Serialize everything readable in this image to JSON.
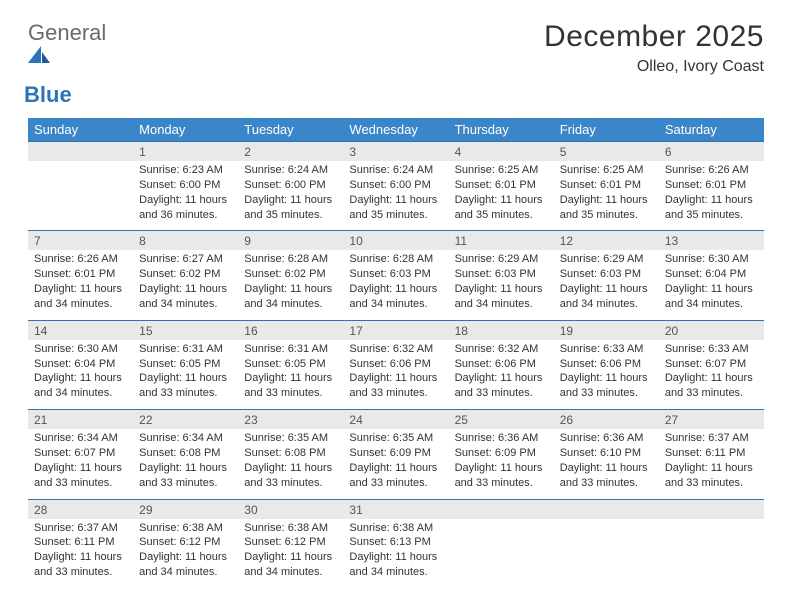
{
  "logo": {
    "text1": "General",
    "text2": "Blue"
  },
  "title": "December 2025",
  "location": "Olleo, Ivory Coast",
  "colors": {
    "header_bg": "#3a86c8",
    "header_text": "#ffffff",
    "daynum_bg": "#e9e9e9",
    "row_border": "#2b74b8",
    "text": "#333333",
    "logo_gray": "#6a6a6a",
    "logo_blue": "#2b74b8"
  },
  "weekdays": [
    "Sunday",
    "Monday",
    "Tuesday",
    "Wednesday",
    "Thursday",
    "Friday",
    "Saturday"
  ],
  "weeks": [
    {
      "nums": [
        "",
        "1",
        "2",
        "3",
        "4",
        "5",
        "6"
      ],
      "cells": [
        {
          "sunrise": "",
          "sunset": "",
          "daylight": ""
        },
        {
          "sunrise": "Sunrise: 6:23 AM",
          "sunset": "Sunset: 6:00 PM",
          "daylight": "Daylight: 11 hours and 36 minutes."
        },
        {
          "sunrise": "Sunrise: 6:24 AM",
          "sunset": "Sunset: 6:00 PM",
          "daylight": "Daylight: 11 hours and 35 minutes."
        },
        {
          "sunrise": "Sunrise: 6:24 AM",
          "sunset": "Sunset: 6:00 PM",
          "daylight": "Daylight: 11 hours and 35 minutes."
        },
        {
          "sunrise": "Sunrise: 6:25 AM",
          "sunset": "Sunset: 6:01 PM",
          "daylight": "Daylight: 11 hours and 35 minutes."
        },
        {
          "sunrise": "Sunrise: 6:25 AM",
          "sunset": "Sunset: 6:01 PM",
          "daylight": "Daylight: 11 hours and 35 minutes."
        },
        {
          "sunrise": "Sunrise: 6:26 AM",
          "sunset": "Sunset: 6:01 PM",
          "daylight": "Daylight: 11 hours and 35 minutes."
        }
      ]
    },
    {
      "nums": [
        "7",
        "8",
        "9",
        "10",
        "11",
        "12",
        "13"
      ],
      "cells": [
        {
          "sunrise": "Sunrise: 6:26 AM",
          "sunset": "Sunset: 6:01 PM",
          "daylight": "Daylight: 11 hours and 34 minutes."
        },
        {
          "sunrise": "Sunrise: 6:27 AM",
          "sunset": "Sunset: 6:02 PM",
          "daylight": "Daylight: 11 hours and 34 minutes."
        },
        {
          "sunrise": "Sunrise: 6:28 AM",
          "sunset": "Sunset: 6:02 PM",
          "daylight": "Daylight: 11 hours and 34 minutes."
        },
        {
          "sunrise": "Sunrise: 6:28 AM",
          "sunset": "Sunset: 6:03 PM",
          "daylight": "Daylight: 11 hours and 34 minutes."
        },
        {
          "sunrise": "Sunrise: 6:29 AM",
          "sunset": "Sunset: 6:03 PM",
          "daylight": "Daylight: 11 hours and 34 minutes."
        },
        {
          "sunrise": "Sunrise: 6:29 AM",
          "sunset": "Sunset: 6:03 PM",
          "daylight": "Daylight: 11 hours and 34 minutes."
        },
        {
          "sunrise": "Sunrise: 6:30 AM",
          "sunset": "Sunset: 6:04 PM",
          "daylight": "Daylight: 11 hours and 34 minutes."
        }
      ]
    },
    {
      "nums": [
        "14",
        "15",
        "16",
        "17",
        "18",
        "19",
        "20"
      ],
      "cells": [
        {
          "sunrise": "Sunrise: 6:30 AM",
          "sunset": "Sunset: 6:04 PM",
          "daylight": "Daylight: 11 hours and 34 minutes."
        },
        {
          "sunrise": "Sunrise: 6:31 AM",
          "sunset": "Sunset: 6:05 PM",
          "daylight": "Daylight: 11 hours and 33 minutes."
        },
        {
          "sunrise": "Sunrise: 6:31 AM",
          "sunset": "Sunset: 6:05 PM",
          "daylight": "Daylight: 11 hours and 33 minutes."
        },
        {
          "sunrise": "Sunrise: 6:32 AM",
          "sunset": "Sunset: 6:06 PM",
          "daylight": "Daylight: 11 hours and 33 minutes."
        },
        {
          "sunrise": "Sunrise: 6:32 AM",
          "sunset": "Sunset: 6:06 PM",
          "daylight": "Daylight: 11 hours and 33 minutes."
        },
        {
          "sunrise": "Sunrise: 6:33 AM",
          "sunset": "Sunset: 6:06 PM",
          "daylight": "Daylight: 11 hours and 33 minutes."
        },
        {
          "sunrise": "Sunrise: 6:33 AM",
          "sunset": "Sunset: 6:07 PM",
          "daylight": "Daylight: 11 hours and 33 minutes."
        }
      ]
    },
    {
      "nums": [
        "21",
        "22",
        "23",
        "24",
        "25",
        "26",
        "27"
      ],
      "cells": [
        {
          "sunrise": "Sunrise: 6:34 AM",
          "sunset": "Sunset: 6:07 PM",
          "daylight": "Daylight: 11 hours and 33 minutes."
        },
        {
          "sunrise": "Sunrise: 6:34 AM",
          "sunset": "Sunset: 6:08 PM",
          "daylight": "Daylight: 11 hours and 33 minutes."
        },
        {
          "sunrise": "Sunrise: 6:35 AM",
          "sunset": "Sunset: 6:08 PM",
          "daylight": "Daylight: 11 hours and 33 minutes."
        },
        {
          "sunrise": "Sunrise: 6:35 AM",
          "sunset": "Sunset: 6:09 PM",
          "daylight": "Daylight: 11 hours and 33 minutes."
        },
        {
          "sunrise": "Sunrise: 6:36 AM",
          "sunset": "Sunset: 6:09 PM",
          "daylight": "Daylight: 11 hours and 33 minutes."
        },
        {
          "sunrise": "Sunrise: 6:36 AM",
          "sunset": "Sunset: 6:10 PM",
          "daylight": "Daylight: 11 hours and 33 minutes."
        },
        {
          "sunrise": "Sunrise: 6:37 AM",
          "sunset": "Sunset: 6:11 PM",
          "daylight": "Daylight: 11 hours and 33 minutes."
        }
      ]
    },
    {
      "nums": [
        "28",
        "29",
        "30",
        "31",
        "",
        "",
        ""
      ],
      "cells": [
        {
          "sunrise": "Sunrise: 6:37 AM",
          "sunset": "Sunset: 6:11 PM",
          "daylight": "Daylight: 11 hours and 33 minutes."
        },
        {
          "sunrise": "Sunrise: 6:38 AM",
          "sunset": "Sunset: 6:12 PM",
          "daylight": "Daylight: 11 hours and 34 minutes."
        },
        {
          "sunrise": "Sunrise: 6:38 AM",
          "sunset": "Sunset: 6:12 PM",
          "daylight": "Daylight: 11 hours and 34 minutes."
        },
        {
          "sunrise": "Sunrise: 6:38 AM",
          "sunset": "Sunset: 6:13 PM",
          "daylight": "Daylight: 11 hours and 34 minutes."
        },
        {
          "sunrise": "",
          "sunset": "",
          "daylight": ""
        },
        {
          "sunrise": "",
          "sunset": "",
          "daylight": ""
        },
        {
          "sunrise": "",
          "sunset": "",
          "daylight": ""
        }
      ]
    }
  ]
}
